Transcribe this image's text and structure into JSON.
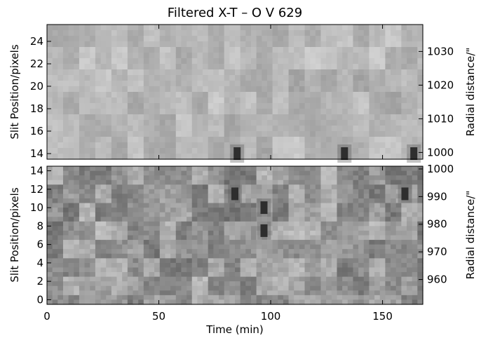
{
  "chart_data": {
    "type": "heatmap",
    "title": "Filtered X-T – O V 629",
    "xlabel": "Time (min)",
    "x_ticks": [
      0,
      50,
      100,
      150
    ],
    "xlim": [
      0,
      168
    ],
    "colormap": "grayscale",
    "panels": [
      {
        "name": "top",
        "ylabel_left": "Slit Position/pixels",
        "ylabel_right": "Radial distance/\"",
        "ylim": [
          13.5,
          25.5
        ],
        "yticks_left": [
          14,
          16,
          18,
          20,
          22,
          24
        ],
        "ylim_right": [
          998,
          1038
        ],
        "yticks_right": [
          1000,
          1010,
          1020,
          1030
        ],
        "dark_spots": [
          {
            "t": 85,
            "y": 14.0
          },
          {
            "t": 133,
            "y": 14.0
          },
          {
            "t": 164,
            "y": 14.0
          }
        ]
      },
      {
        "name": "bottom",
        "ylabel_left": "Slit Position/pixels",
        "ylabel_right": "Radial distance/\"",
        "ylim": [
          -0.5,
          14.5
        ],
        "yticks_left": [
          0,
          2,
          4,
          6,
          8,
          10,
          12,
          14
        ],
        "ylim_right": [
          951,
          1001
        ],
        "yticks_right": [
          960,
          970,
          980,
          990,
          1000
        ],
        "dark_spots": [
          {
            "t": 84,
            "y": 11.5
          },
          {
            "t": 97,
            "y": 10.0
          },
          {
            "t": 97,
            "y": 7.5
          },
          {
            "t": 160,
            "y": 11.5
          }
        ]
      }
    ]
  }
}
